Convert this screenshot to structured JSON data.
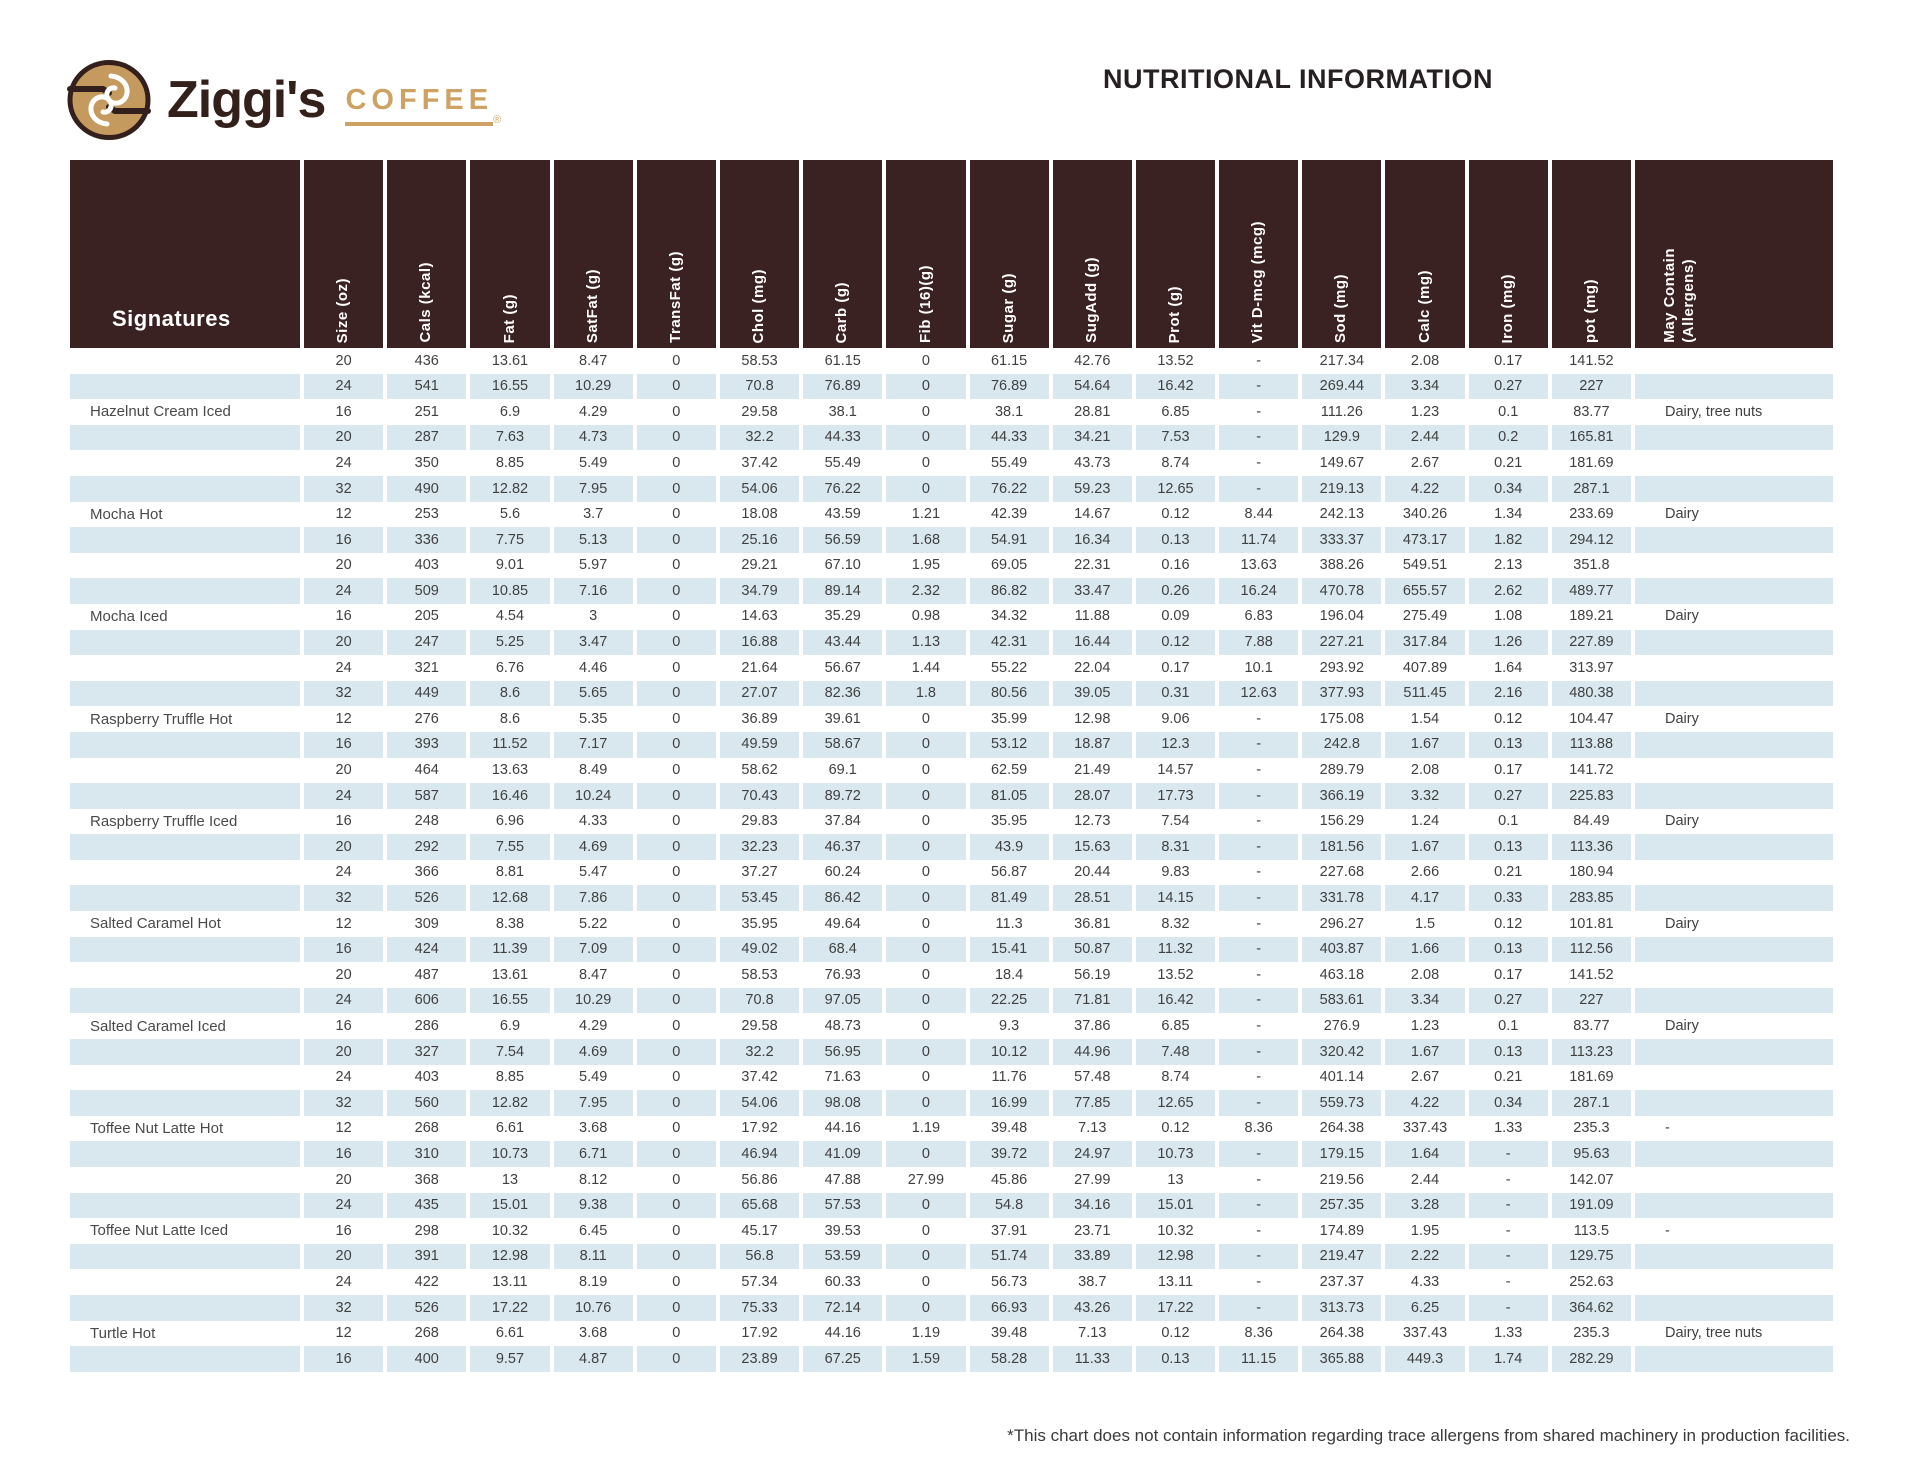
{
  "brand": {
    "name": "Ziggi's",
    "word": "COFFEE",
    "registered": "®"
  },
  "title": "NUTRITIONAL INFORMATION",
  "colors": {
    "header_bg": "#3a2122",
    "stripe_blue": "#d9e8ef",
    "brand_tan": "#c79c5e"
  },
  "footnote": "*This chart does not contain information regarding trace allergens from shared machinery in production facilities.",
  "table": {
    "group_header": "Signatures",
    "columns": [
      "Size (oz)",
      "Cals (kcal)",
      "Fat (g)",
      "SatFat (g)",
      "TransFat (g)",
      "Chol (mg)",
      "Carb (g)",
      "Fib (16)(g)",
      "Sugar (g)",
      "SugAdd (g)",
      "Prot (g)",
      "Vit D-mcg (mcg)",
      "Sod (mg)",
      "Calc (mg)",
      "Iron (mg)",
      "pot (mg)"
    ],
    "allergen_column": "May Contain\n(Allergens)",
    "rows": [
      {
        "name": "",
        "values": [
          "20",
          "436",
          "13.61",
          "8.47",
          "0",
          "58.53",
          "61.15",
          "0",
          "61.15",
          "42.76",
          "13.52",
          "-",
          "217.34",
          "2.08",
          "0.17",
          "141.52"
        ],
        "allergens": ""
      },
      {
        "name": "",
        "values": [
          "24",
          "541",
          "16.55",
          "10.29",
          "0",
          "70.8",
          "76.89",
          "0",
          "76.89",
          "54.64",
          "16.42",
          "-",
          "269.44",
          "3.34",
          "0.27",
          "227"
        ],
        "allergens": ""
      },
      {
        "name": "Hazelnut Cream Iced",
        "values": [
          "16",
          "251",
          "6.9",
          "4.29",
          "0",
          "29.58",
          "38.1",
          "0",
          "38.1",
          "28.81",
          "6.85",
          "-",
          "111.26",
          "1.23",
          "0.1",
          "83.77"
        ],
        "allergens": "Dairy, tree nuts"
      },
      {
        "name": "",
        "values": [
          "20",
          "287",
          "7.63",
          "4.73",
          "0",
          "32.2",
          "44.33",
          "0",
          "44.33",
          "34.21",
          "7.53",
          "-",
          "129.9",
          "2.44",
          "0.2",
          "165.81"
        ],
        "allergens": ""
      },
      {
        "name": "",
        "values": [
          "24",
          "350",
          "8.85",
          "5.49",
          "0",
          "37.42",
          "55.49",
          "0",
          "55.49",
          "43.73",
          "8.74",
          "-",
          "149.67",
          "2.67",
          "0.21",
          "181.69"
        ],
        "allergens": ""
      },
      {
        "name": "",
        "values": [
          "32",
          "490",
          "12.82",
          "7.95",
          "0",
          "54.06",
          "76.22",
          "0",
          "76.22",
          "59.23",
          "12.65",
          "-",
          "219.13",
          "4.22",
          "0.34",
          "287.1"
        ],
        "allergens": ""
      },
      {
        "name": "Mocha Hot",
        "values": [
          "12",
          "253",
          "5.6",
          "3.7",
          "0",
          "18.08",
          "43.59",
          "1.21",
          "42.39",
          "14.67",
          "0.12",
          "8.44",
          "242.13",
          "340.26",
          "1.34",
          "233.69"
        ],
        "allergens": "Dairy"
      },
      {
        "name": "",
        "values": [
          "16",
          "336",
          "7.75",
          "5.13",
          "0",
          "25.16",
          "56.59",
          "1.68",
          "54.91",
          "16.34",
          "0.13",
          "11.74",
          "333.37",
          "473.17",
          "1.82",
          "294.12"
        ],
        "allergens": ""
      },
      {
        "name": "",
        "values": [
          "20",
          "403",
          "9.01",
          "5.97",
          "0",
          "29.21",
          "67.10",
          "1.95",
          "69.05",
          "22.31",
          "0.16",
          "13.63",
          "388.26",
          "549.51",
          "2.13",
          "351.8"
        ],
        "allergens": ""
      },
      {
        "name": "",
        "values": [
          "24",
          "509",
          "10.85",
          "7.16",
          "0",
          "34.79",
          "89.14",
          "2.32",
          "86.82",
          "33.47",
          "0.26",
          "16.24",
          "470.78",
          "655.57",
          "2.62",
          "489.77"
        ],
        "allergens": ""
      },
      {
        "name": "Mocha Iced",
        "values": [
          "16",
          "205",
          "4.54",
          "3",
          "0",
          "14.63",
          "35.29",
          "0.98",
          "34.32",
          "11.88",
          "0.09",
          "6.83",
          "196.04",
          "275.49",
          "1.08",
          "189.21"
        ],
        "allergens": "Dairy"
      },
      {
        "name": "",
        "values": [
          "20",
          "247",
          "5.25",
          "3.47",
          "0",
          "16.88",
          "43.44",
          "1.13",
          "42.31",
          "16.44",
          "0.12",
          "7.88",
          "227.21",
          "317.84",
          "1.26",
          "227.89"
        ],
        "allergens": ""
      },
      {
        "name": "",
        "values": [
          "24",
          "321",
          "6.76",
          "4.46",
          "0",
          "21.64",
          "56.67",
          "1.44",
          "55.22",
          "22.04",
          "0.17",
          "10.1",
          "293.92",
          "407.89",
          "1.64",
          "313.97"
        ],
        "allergens": ""
      },
      {
        "name": "",
        "values": [
          "32",
          "449",
          "8.6",
          "5.65",
          "0",
          "27.07",
          "82.36",
          "1.8",
          "80.56",
          "39.05",
          "0.31",
          "12.63",
          "377.93",
          "511.45",
          "2.16",
          "480.38"
        ],
        "allergens": ""
      },
      {
        "name": "Raspberry Truffle Hot",
        "values": [
          "12",
          "276",
          "8.6",
          "5.35",
          "0",
          "36.89",
          "39.61",
          "0",
          "35.99",
          "12.98",
          "9.06",
          "-",
          "175.08",
          "1.54",
          "0.12",
          "104.47"
        ],
        "allergens": "Dairy"
      },
      {
        "name": "",
        "values": [
          "16",
          "393",
          "11.52",
          "7.17",
          "0",
          "49.59",
          "58.67",
          "0",
          "53.12",
          "18.87",
          "12.3",
          "-",
          "242.8",
          "1.67",
          "0.13",
          "113.88"
        ],
        "allergens": ""
      },
      {
        "name": "",
        "values": [
          "20",
          "464",
          "13.63",
          "8.49",
          "0",
          "58.62",
          "69.1",
          "0",
          "62.59",
          "21.49",
          "14.57",
          "-",
          "289.79",
          "2.08",
          "0.17",
          "141.72"
        ],
        "allergens": ""
      },
      {
        "name": "",
        "values": [
          "24",
          "587",
          "16.46",
          "10.24",
          "0",
          "70.43",
          "89.72",
          "0",
          "81.05",
          "28.07",
          "17.73",
          "-",
          "366.19",
          "3.32",
          "0.27",
          "225.83"
        ],
        "allergens": ""
      },
      {
        "name": "Raspberry Truffle Iced",
        "values": [
          "16",
          "248",
          "6.96",
          "4.33",
          "0",
          "29.83",
          "37.84",
          "0",
          "35.95",
          "12.73",
          "7.54",
          "-",
          "156.29",
          "1.24",
          "0.1",
          "84.49"
        ],
        "allergens": "Dairy"
      },
      {
        "name": "",
        "values": [
          "20",
          "292",
          "7.55",
          "4.69",
          "0",
          "32.23",
          "46.37",
          "0",
          "43.9",
          "15.63",
          "8.31",
          "-",
          "181.56",
          "1.67",
          "0.13",
          "113.36"
        ],
        "allergens": ""
      },
      {
        "name": "",
        "values": [
          "24",
          "366",
          "8.81",
          "5.47",
          "0",
          "37.27",
          "60.24",
          "0",
          "56.87",
          "20.44",
          "9.83",
          "-",
          "227.68",
          "2.66",
          "0.21",
          "180.94"
        ],
        "allergens": ""
      },
      {
        "name": "",
        "values": [
          "32",
          "526",
          "12.68",
          "7.86",
          "0",
          "53.45",
          "86.42",
          "0",
          "81.49",
          "28.51",
          "14.15",
          "-",
          "331.78",
          "4.17",
          "0.33",
          "283.85"
        ],
        "allergens": ""
      },
      {
        "name": "Salted Caramel Hot",
        "values": [
          "12",
          "309",
          "8.38",
          "5.22",
          "0",
          "35.95",
          "49.64",
          "0",
          "11.3",
          "36.81",
          "8.32",
          "-",
          "296.27",
          "1.5",
          "0.12",
          "101.81"
        ],
        "allergens": "Dairy"
      },
      {
        "name": "",
        "values": [
          "16",
          "424",
          "11.39",
          "7.09",
          "0",
          "49.02",
          "68.4",
          "0",
          "15.41",
          "50.87",
          "11.32",
          "-",
          "403.87",
          "1.66",
          "0.13",
          "112.56"
        ],
        "allergens": ""
      },
      {
        "name": "",
        "values": [
          "20",
          "487",
          "13.61",
          "8.47",
          "0",
          "58.53",
          "76.93",
          "0",
          "18.4",
          "56.19",
          "13.52",
          "-",
          "463.18",
          "2.08",
          "0.17",
          "141.52"
        ],
        "allergens": ""
      },
      {
        "name": "",
        "values": [
          "24",
          "606",
          "16.55",
          "10.29",
          "0",
          "70.8",
          "97.05",
          "0",
          "22.25",
          "71.81",
          "16.42",
          "-",
          "583.61",
          "3.34",
          "0.27",
          "227"
        ],
        "allergens": ""
      },
      {
        "name": "Salted Caramel Iced",
        "values": [
          "16",
          "286",
          "6.9",
          "4.29",
          "0",
          "29.58",
          "48.73",
          "0",
          "9.3",
          "37.86",
          "6.85",
          "-",
          "276.9",
          "1.23",
          "0.1",
          "83.77"
        ],
        "allergens": "Dairy"
      },
      {
        "name": "",
        "values": [
          "20",
          "327",
          "7.54",
          "4.69",
          "0",
          "32.2",
          "56.95",
          "0",
          "10.12",
          "44.96",
          "7.48",
          "-",
          "320.42",
          "1.67",
          "0.13",
          "113.23"
        ],
        "allergens": ""
      },
      {
        "name": "",
        "values": [
          "24",
          "403",
          "8.85",
          "5.49",
          "0",
          "37.42",
          "71.63",
          "0",
          "11.76",
          "57.48",
          "8.74",
          "-",
          "401.14",
          "2.67",
          "0.21",
          "181.69"
        ],
        "allergens": ""
      },
      {
        "name": "",
        "values": [
          "32",
          "560",
          "12.82",
          "7.95",
          "0",
          "54.06",
          "98.08",
          "0",
          "16.99",
          "77.85",
          "12.65",
          "-",
          "559.73",
          "4.22",
          "0.34",
          "287.1"
        ],
        "allergens": ""
      },
      {
        "name": "Toffee Nut Latte Hot",
        "values": [
          "12",
          "268",
          "6.61",
          "3.68",
          "0",
          "17.92",
          "44.16",
          "1.19",
          "39.48",
          "7.13",
          "0.12",
          "8.36",
          "264.38",
          "337.43",
          "1.33",
          "235.3"
        ],
        "allergens": "-"
      },
      {
        "name": "",
        "values": [
          "16",
          "310",
          "10.73",
          "6.71",
          "0",
          "46.94",
          "41.09",
          "0",
          "39.72",
          "24.97",
          "10.73",
          "-",
          "179.15",
          "1.64",
          "-",
          "95.63"
        ],
        "allergens": ""
      },
      {
        "name": "",
        "values": [
          "20",
          "368",
          "13",
          "8.12",
          "0",
          "56.86",
          "47.88",
          "27.99",
          "45.86",
          "27.99",
          "13",
          "-",
          "219.56",
          "2.44",
          "-",
          "142.07"
        ],
        "allergens": ""
      },
      {
        "name": "",
        "values": [
          "24",
          "435",
          "15.01",
          "9.38",
          "0",
          "65.68",
          "57.53",
          "0",
          "54.8",
          "34.16",
          "15.01",
          "-",
          "257.35",
          "3.28",
          "-",
          "191.09"
        ],
        "allergens": ""
      },
      {
        "name": "Toffee Nut Latte Iced",
        "values": [
          "16",
          "298",
          "10.32",
          "6.45",
          "0",
          "45.17",
          "39.53",
          "0",
          "37.91",
          "23.71",
          "10.32",
          "-",
          "174.89",
          "1.95",
          "-",
          "113.5"
        ],
        "allergens": "-"
      },
      {
        "name": "",
        "values": [
          "20",
          "391",
          "12.98",
          "8.11",
          "0",
          "56.8",
          "53.59",
          "0",
          "51.74",
          "33.89",
          "12.98",
          "-",
          "219.47",
          "2.22",
          "-",
          "129.75"
        ],
        "allergens": ""
      },
      {
        "name": "",
        "values": [
          "24",
          "422",
          "13.11",
          "8.19",
          "0",
          "57.34",
          "60.33",
          "0",
          "56.73",
          "38.7",
          "13.11",
          "-",
          "237.37",
          "4.33",
          "-",
          "252.63"
        ],
        "allergens": ""
      },
      {
        "name": "",
        "values": [
          "32",
          "526",
          "17.22",
          "10.76",
          "0",
          "75.33",
          "72.14",
          "0",
          "66.93",
          "43.26",
          "17.22",
          "-",
          "313.73",
          "6.25",
          "-",
          "364.62"
        ],
        "allergens": ""
      },
      {
        "name": "Turtle Hot",
        "values": [
          "12",
          "268",
          "6.61",
          "3.68",
          "0",
          "17.92",
          "44.16",
          "1.19",
          "39.48",
          "7.13",
          "0.12",
          "8.36",
          "264.38",
          "337.43",
          "1.33",
          "235.3"
        ],
        "allergens": "Dairy, tree nuts"
      },
      {
        "name": "",
        "values": [
          "16",
          "400",
          "9.57",
          "4.87",
          "0",
          "23.89",
          "67.25",
          "1.59",
          "58.28",
          "11.33",
          "0.13",
          "11.15",
          "365.88",
          "449.3",
          "1.74",
          "282.29"
        ],
        "allergens": ""
      }
    ]
  }
}
